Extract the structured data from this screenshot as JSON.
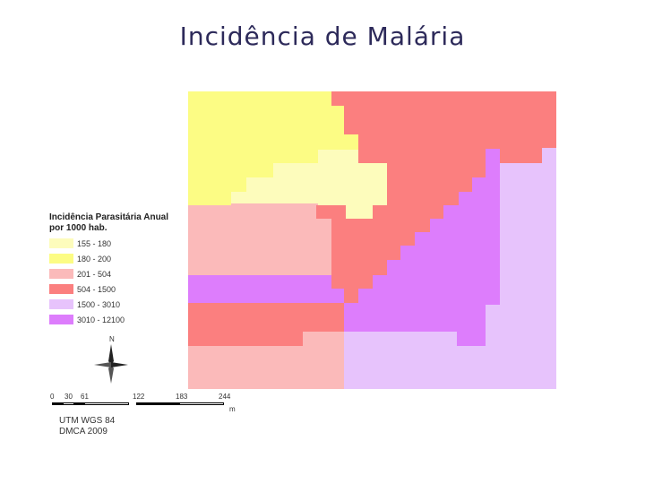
{
  "title": "Incidência de Malária",
  "colors": {
    "pale_yellow": "#fdfcbc",
    "yellow": "#fcfc84",
    "pink": "#fbbaba",
    "salmon": "#fb7f7f",
    "lavender": "#e7c3fc",
    "violet": "#dd7dfc"
  },
  "legend": {
    "title_line1": "Incidência Parasitária Anual",
    "title_line2": "por 1000 hab.",
    "items": [
      {
        "label": "155 - 180",
        "color": "#fdfcbc"
      },
      {
        "label": "180 - 200",
        "color": "#fcfc84"
      },
      {
        "label": "201 - 504",
        "color": "#fbbaba"
      },
      {
        "label": "504 - 1500",
        "color": "#fb7f7f"
      },
      {
        "label": "1500 - 3010",
        "color": "#e7c3fc"
      },
      {
        "label": "3010 - 12100",
        "color": "#dd7dfc"
      }
    ]
  },
  "north_arrow": {
    "label": "N",
    "icon": "north-arrow-icon"
  },
  "scale": {
    "ticks": [
      "0",
      "30",
      "61",
      "122",
      "183",
      "244"
    ],
    "unit": "m"
  },
  "credits": {
    "line1": "UTM WGS 84",
    "line2": "DMCA 2009"
  }
}
